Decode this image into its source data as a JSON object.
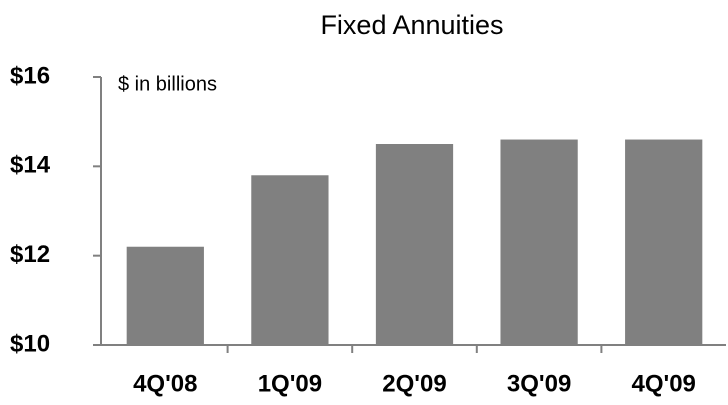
{
  "chart_data": {
    "type": "bar",
    "title": "Fixed Annuities",
    "subtitle": "$ in billions",
    "categories": [
      "4Q'08",
      "1Q'09",
      "2Q'09",
      "3Q'09",
      "4Q'09"
    ],
    "values": [
      12.2,
      13.8,
      14.5,
      14.6,
      14.6
    ],
    "color": "#808080",
    "ylim": [
      10,
      16
    ],
    "yticks": [
      {
        "value": 10,
        "label": "$10"
      },
      {
        "value": 12,
        "label": "$12"
      },
      {
        "value": 14,
        "label": "$14"
      },
      {
        "value": 16,
        "label": "$16"
      }
    ],
    "grid": false
  }
}
